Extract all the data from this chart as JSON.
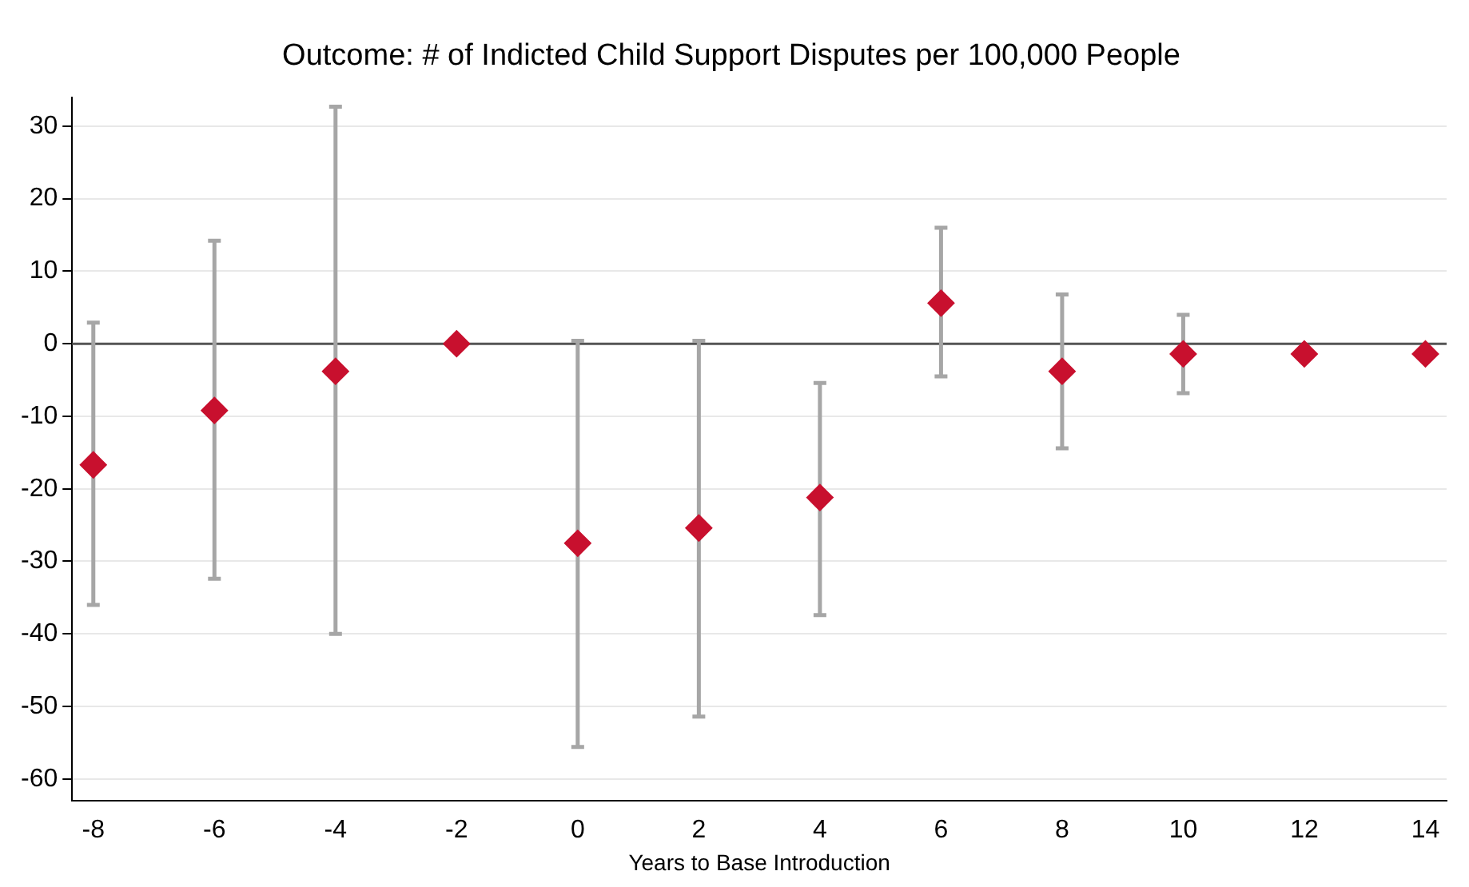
{
  "chart_data": {
    "type": "scatter",
    "title": "Outcome: # of Indicted Child Support Disputes per 100,000 People",
    "xlabel": "Years to Base Introduction",
    "x": [
      -8,
      -6,
      -4,
      -2,
      0,
      2,
      4,
      6,
      8,
      10,
      12,
      14
    ],
    "series": [
      {
        "color": "#c8102e",
        "values": [
          -16.7,
          -9.2,
          -3.8,
          0,
          -27.5,
          -25.4,
          -21.2,
          5.6,
          -3.8,
          -1.4,
          -1.4,
          -1.4
        ],
        "errors": [
          [
            -36,
            2.9
          ],
          [
            -32.4,
            14.2
          ],
          [
            -40,
            32.7
          ],
          null,
          [
            -55.6,
            0.4
          ],
          [
            -51.4,
            0.4
          ],
          [
            -37.4,
            -5.4
          ],
          [
            -4.5,
            16
          ],
          [
            -14.4,
            6.8
          ],
          [
            -6.8,
            4
          ],
          null,
          null
        ]
      }
    ],
    "xlim": [
      -8.35,
      14.35
    ],
    "xticks": [
      -8,
      -6,
      -4,
      -2,
      0,
      2,
      4,
      6,
      8,
      10,
      12,
      14
    ],
    "ylim": [
      -63,
      34
    ],
    "yticks": [
      -60,
      -50,
      -40,
      -30,
      -20,
      -10,
      0,
      10,
      20,
      30
    ],
    "grid": "y",
    "marker": "diamond",
    "legend": false,
    "ref_lines": [
      {
        "axis": "y",
        "value": 0,
        "color": "#555555"
      }
    ]
  }
}
